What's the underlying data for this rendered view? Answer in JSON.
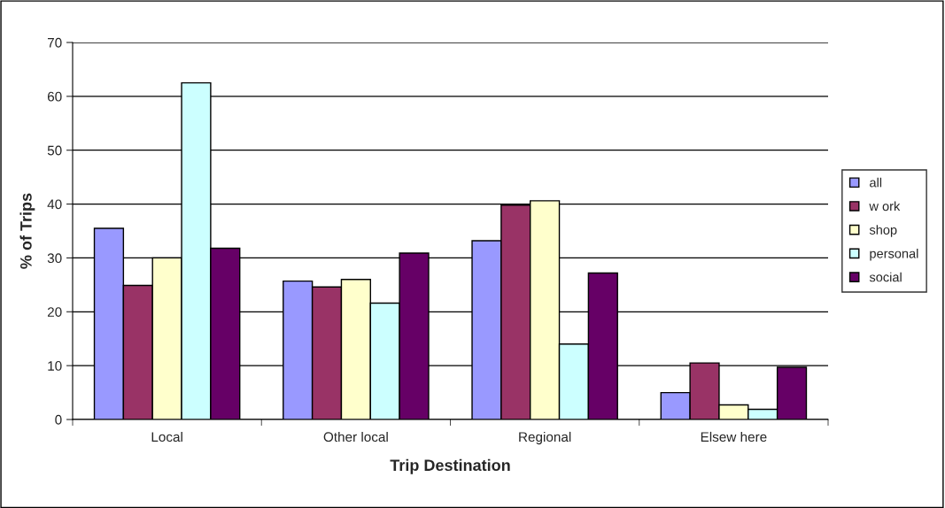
{
  "chart_data": {
    "type": "bar",
    "xlabel": "Trip Destination",
    "ylabel": "% of Trips",
    "categories": [
      "Local",
      "Other local",
      "Regional",
      "Elsew here"
    ],
    "series": [
      {
        "name": "all",
        "color": "#9999ff",
        "values": [
          35.5,
          25.7,
          33.2,
          5.0
        ]
      },
      {
        "name": "w ork",
        "color": "#993366",
        "values": [
          24.9,
          24.6,
          39.8,
          10.5
        ]
      },
      {
        "name": "shop",
        "color": "#ffffcc",
        "values": [
          30.0,
          26.0,
          40.6,
          2.7
        ]
      },
      {
        "name": "personal",
        "color": "#ccffff",
        "values": [
          62.5,
          21.6,
          14.0,
          1.9
        ]
      },
      {
        "name": "social",
        "color": "#660066",
        "values": [
          31.8,
          30.9,
          27.2,
          9.7
        ]
      }
    ],
    "ylim": [
      0,
      70
    ],
    "yticks": [
      0,
      10,
      20,
      30,
      40,
      50,
      60,
      70
    ],
    "grid": "y",
    "legend": "right"
  }
}
